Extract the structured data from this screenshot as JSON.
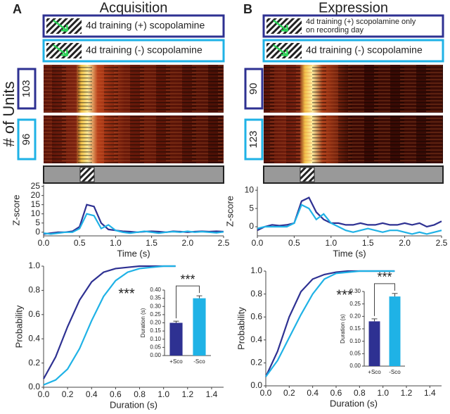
{
  "figure": {
    "units_label": "# of Units"
  },
  "panels": [
    {
      "label": "A",
      "title": "Acquisition",
      "legend": [
        [
          "4d training (+) scopolamine"
        ],
        [
          "4d training (-) scopolamine"
        ]
      ],
      "units": [
        103,
        96
      ]
    },
    {
      "label": "B",
      "title": "Expression",
      "legend": [
        [
          "4d training (+) scopolamine only",
          "on recording day"
        ],
        [
          "4d training (-) scopolamine"
        ]
      ],
      "units": [
        90,
        123
      ]
    }
  ],
  "chart_data": [
    {
      "type": "line",
      "ylabel": "Z-score",
      "xlabel": "Time (s)",
      "x": [
        0,
        0.1,
        0.2,
        0.3,
        0.4,
        0.5,
        0.6,
        0.7,
        0.8,
        0.9,
        1.0,
        1.1,
        1.2,
        1.3,
        1.4,
        1.5,
        1.6,
        1.7,
        1.8,
        1.9,
        2.0,
        2.1,
        2.2,
        2.3,
        2.4,
        2.5
      ],
      "series": [
        {
          "color": "#2e3192",
          "values": [
            -1,
            -0.5,
            0,
            0,
            0.5,
            3,
            15,
            14,
            5,
            1.5,
            1,
            0.5,
            0.3,
            0,
            0.3,
            0.5,
            0.3,
            0,
            0.5,
            0.3,
            0,
            0.3,
            0.5,
            0.3,
            0.5,
            0.3
          ]
        },
        {
          "color": "#1fb2e6",
          "values": [
            -0.5,
            -1,
            -0.5,
            0,
            0,
            2,
            10,
            9,
            2,
            4,
            1,
            0,
            -0.5,
            0,
            0.5,
            0,
            -0.5,
            0,
            0.3,
            0,
            0.5,
            0,
            0.3,
            0,
            -0.3,
            0.2
          ]
        }
      ],
      "xlim": [
        0,
        2.5
      ],
      "xticks": [
        {
          "value": 0,
          "label": "0.0"
        },
        0.5,
        {
          "value": 1,
          "label": "1.0"
        },
        1.5,
        {
          "value": 2,
          "label": "2.0"
        },
        2.5
      ],
      "ylim": [
        -2,
        26
      ],
      "yticks": [
        0,
        5,
        10,
        15,
        20,
        25
      ]
    },
    {
      "type": "line",
      "ylabel": "Probability",
      "xlabel": "Duration (s)",
      "annotation": "***",
      "x": [
        0,
        0.1,
        0.2,
        0.3,
        0.4,
        0.5,
        0.6,
        0.7,
        0.8,
        0.9,
        1.0,
        1.1
      ],
      "series": [
        {
          "color": "#2e3192",
          "values": [
            0.07,
            0.25,
            0.5,
            0.72,
            0.87,
            0.95,
            0.98,
            0.99,
            1,
            1,
            1,
            1
          ]
        },
        {
          "color": "#1fb2e6",
          "values": [
            0.02,
            0.06,
            0.15,
            0.32,
            0.55,
            0.75,
            0.88,
            0.95,
            0.98,
            0.99,
            1,
            1
          ]
        }
      ],
      "xlim": [
        0,
        1.5
      ],
      "xticks": [
        {
          "value": 0,
          "label": "0.0"
        },
        0.2,
        0.4,
        0.6,
        0.8,
        {
          "value": 1,
          "label": "1.0"
        },
        1.2,
        1.4
      ],
      "ylim": [
        0,
        1
      ],
      "yticks": [
        {
          "value": 0,
          "label": "0.0"
        },
        0.2,
        0.4,
        0.6,
        0.8,
        {
          "value": 1,
          "label": "1.0"
        }
      ]
    },
    {
      "type": "bar",
      "ylabel": "Duration (s)",
      "annotation": "***",
      "categories": [
        "+Sco",
        "-Sco"
      ],
      "values": [
        0.2,
        0.35
      ],
      "errors": [
        0.01,
        0.015
      ],
      "colors": [
        "#2e3192",
        "#1fb2e6"
      ],
      "ylim": [
        0,
        0.4
      ],
      "yticks": [
        {
          "value": 0,
          "label": "0.00"
        },
        {
          "value": 0.05,
          "label": "0.05"
        },
        {
          "value": 0.1,
          "label": "0.10"
        },
        {
          "value": 0.15,
          "label": "0.15"
        },
        {
          "value": 0.2,
          "label": "0.20"
        },
        {
          "value": 0.25,
          "label": "0.25"
        },
        {
          "value": 0.3,
          "label": "0.30"
        },
        {
          "value": 0.35,
          "label": "0.35"
        },
        {
          "value": 0.4,
          "label": "0.40"
        }
      ]
    },
    {
      "type": "line",
      "ylabel": "Z-score",
      "xlabel": "Time (s)",
      "x": [
        0,
        0.1,
        0.2,
        0.3,
        0.4,
        0.5,
        0.6,
        0.7,
        0.8,
        0.9,
        1.0,
        1.1,
        1.2,
        1.3,
        1.4,
        1.5,
        1.6,
        1.7,
        1.8,
        1.9,
        2.0,
        2.1,
        2.2,
        2.3,
        2.4,
        2.5
      ],
      "series": [
        {
          "color": "#2e3192",
          "values": [
            -1,
            0,
            0.5,
            0.3,
            0.5,
            1,
            7,
            8,
            4,
            2,
            1,
            1,
            0.5,
            0.5,
            1,
            0.5,
            0.5,
            1,
            0.5,
            0.5,
            1,
            0.5,
            1,
            0,
            0.5,
            1.5
          ]
        },
        {
          "color": "#1fb2e6",
          "values": [
            -0.5,
            0,
            0,
            0,
            0,
            1,
            6,
            5,
            2,
            3.5,
            1,
            0,
            -1,
            -1.5,
            -1,
            -0.5,
            -1,
            -1.5,
            -1,
            -1,
            -1.5,
            -2,
            -1.5,
            -2,
            -1.5,
            -1
          ]
        }
      ],
      "xlim": [
        0,
        2.5
      ],
      "xticks": [
        {
          "value": 0,
          "label": "0.0"
        },
        0.5,
        {
          "value": 1,
          "label": "1.0"
        },
        1.5,
        {
          "value": 2,
          "label": "2.0"
        },
        2.5
      ],
      "ylim": [
        -2.5,
        11
      ],
      "yticks": [
        0,
        5,
        10
      ]
    },
    {
      "type": "line",
      "ylabel": "Probability",
      "xlabel": "Duration (s)",
      "annotation": "***",
      "x": [
        0,
        0.1,
        0.2,
        0.3,
        0.4,
        0.5,
        0.6,
        0.7,
        0.8,
        0.9,
        1.0,
        1.1
      ],
      "series": [
        {
          "color": "#2e3192",
          "values": [
            0.08,
            0.3,
            0.6,
            0.82,
            0.93,
            0.97,
            0.99,
            1,
            1,
            1,
            1,
            1
          ]
        },
        {
          "color": "#1fb2e6",
          "values": [
            0.08,
            0.22,
            0.42,
            0.62,
            0.8,
            0.93,
            0.98,
            0.99,
            1,
            1,
            1,
            1
          ]
        }
      ],
      "xlim": [
        0,
        1.5
      ],
      "xticks": [
        {
          "value": 0,
          "label": "0.0"
        },
        0.2,
        0.4,
        0.6,
        0.8,
        {
          "value": 1,
          "label": "1.0"
        },
        1.2,
        1.4
      ],
      "ylim": [
        0,
        1
      ],
      "yticks": [
        {
          "value": 0,
          "label": "0.0"
        },
        0.2,
        0.4,
        0.6,
        0.8,
        {
          "value": 1,
          "label": "1.0"
        }
      ]
    },
    {
      "type": "bar",
      "ylabel": "Duration (s)",
      "annotation": "***",
      "categories": [
        "+Sco",
        "-Sco"
      ],
      "values": [
        0.18,
        0.28
      ],
      "errors": [
        0.01,
        0.012
      ],
      "colors": [
        "#2e3192",
        "#1fb2e6"
      ],
      "ylim": [
        0,
        0.3
      ],
      "yticks": [
        {
          "value": 0,
          "label": "0.00"
        },
        {
          "value": 0.05,
          "label": "0.05"
        },
        {
          "value": 0.1,
          "label": "0.10"
        },
        {
          "value": 0.15,
          "label": "0.15"
        },
        {
          "value": 0.2,
          "label": "0.20"
        },
        {
          "value": 0.25,
          "label": "0.25"
        },
        {
          "value": 0.3,
          "label": "0.30"
        }
      ]
    }
  ]
}
